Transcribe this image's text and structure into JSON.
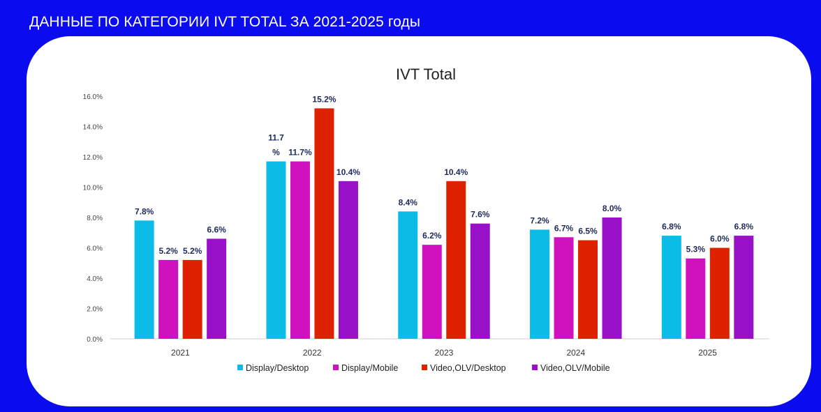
{
  "page_title": "ДАННЫЕ ПО КАТЕГОРИИ IVT TOTAL ЗА 2021-2025 годы",
  "chart_data": {
    "type": "bar",
    "title": "IVT Total",
    "xlabel": "",
    "ylabel": "",
    "ylim": [
      0,
      16
    ],
    "y_ticks": [
      "0.0%",
      "2.0%",
      "4.0%",
      "6.0%",
      "8.0%",
      "10.0%",
      "12.0%",
      "14.0%",
      "16.0%"
    ],
    "categories": [
      "2021",
      "2022",
      "2023",
      "2024",
      "2025"
    ],
    "legend_position": "bottom",
    "grid": false,
    "series": [
      {
        "name": "Display/Desktop",
        "color": "#0bbde6",
        "values": [
          7.8,
          11.7,
          8.4,
          7.2,
          6.8
        ],
        "labels": [
          "7.8%",
          "11.7 %",
          "8.4%",
          "7.2%",
          "6.8%"
        ]
      },
      {
        "name": "Display/Mobile",
        "color": "#d012be",
        "values": [
          5.2,
          11.7,
          6.2,
          6.7,
          5.3
        ],
        "labels": [
          "5.2%",
          "11.7%",
          "6.2%",
          "6.7%",
          "5.3%"
        ]
      },
      {
        "name": "Video,OLV/Desktop",
        "color": "#de2200",
        "values": [
          5.2,
          15.2,
          10.4,
          6.5,
          6.0
        ],
        "labels": [
          "5.2%",
          "15.2%",
          "10.4%",
          "6.5%",
          "6.0%"
        ]
      },
      {
        "name": "Video,OLV/Mobile",
        "color": "#9810c8",
        "values": [
          6.6,
          10.4,
          7.6,
          8.0,
          6.8
        ],
        "labels": [
          "6.6%",
          "10.4%",
          "7.6%",
          "8.0%",
          "6.8%"
        ]
      }
    ]
  }
}
